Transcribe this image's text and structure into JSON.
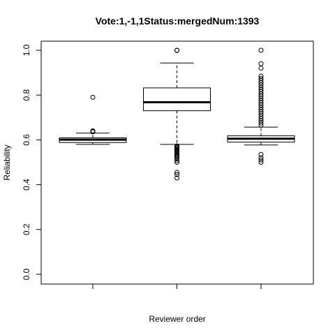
{
  "chart_data": {
    "type": "box",
    "title": "Vote:1,-1,1Status:mergedNum:1393",
    "xlabel": "Reviewer order",
    "ylabel": "Reliability",
    "ylim": [
      0,
      1
    ],
    "yticks": [
      0.0,
      0.2,
      0.4,
      0.6,
      0.8,
      1.0
    ],
    "ytick_labels": [
      "0.0",
      "0.2",
      "0.4",
      "0.6",
      "0.8",
      "1.0"
    ],
    "grid": false,
    "legend": "none",
    "boxes": [
      {
        "whisker_low": 0.58,
        "q1": 0.588,
        "median": 0.601,
        "q3": 0.609,
        "whisker_high": 0.63,
        "outliers": [
          0.636,
          0.637,
          0.638,
          0.639,
          0.64,
          0.79
        ]
      },
      {
        "whisker_low": 0.58,
        "q1": 0.73,
        "median": 0.768,
        "q3": 0.832,
        "whisker_high": 0.943,
        "outliers": [
          0.43,
          0.445,
          0.455,
          0.5,
          0.508,
          0.515,
          0.522,
          0.528,
          0.533,
          0.538,
          0.543,
          0.548,
          0.553,
          0.557,
          0.561,
          0.565,
          0.569,
          0.573,
          0.999,
          1.0
        ]
      },
      {
        "whisker_low": 0.577,
        "q1": 0.59,
        "median": 0.605,
        "q3": 0.618,
        "whisker_high": 0.657,
        "outliers": [
          0.5,
          0.51,
          0.52,
          0.535,
          0.665,
          0.675,
          0.685,
          0.695,
          0.705,
          0.715,
          0.725,
          0.735,
          0.745,
          0.755,
          0.765,
          0.775,
          0.785,
          0.795,
          0.805,
          0.815,
          0.825,
          0.835,
          0.845,
          0.855,
          0.865,
          0.875,
          0.885,
          0.92,
          0.94,
          1.0
        ]
      }
    ]
  }
}
